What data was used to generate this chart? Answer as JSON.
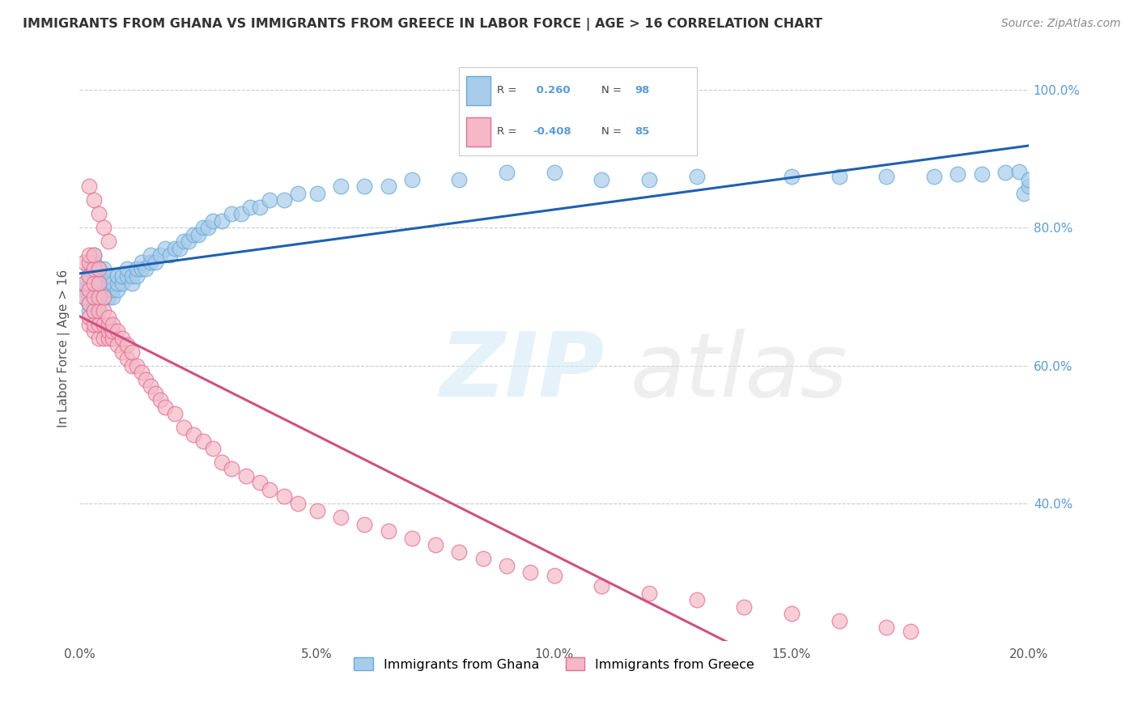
{
  "title": "IMMIGRANTS FROM GHANA VS IMMIGRANTS FROM GREECE IN LABOR FORCE | AGE > 16 CORRELATION CHART",
  "source": "Source: ZipAtlas.com",
  "ylabel": "In Labor Force | Age > 16",
  "x_ticks": [
    0.0,
    0.05,
    0.1,
    0.15,
    0.2
  ],
  "y_ticks_right": [
    0.4,
    0.6,
    0.8,
    1.0
  ],
  "xlim": [
    0.0,
    0.2
  ],
  "ylim": [
    0.2,
    1.05
  ],
  "ghana_color": "#A8CCEA",
  "ghana_edge": "#6AAAD6",
  "greece_color": "#F5B8C8",
  "greece_edge": "#E07090",
  "ghana_line_color": "#2060B0",
  "greece_line_color": "#D05080",
  "ghana_R": 0.26,
  "ghana_N": 98,
  "greece_R": -0.408,
  "greece_N": 85,
  "legend_label_ghana": "Immigrants from Ghana",
  "legend_label_greece": "Immigrants from Greece",
  "background_color": "#ffffff",
  "grid_color": "#cccccc",
  "ghana_x": [
    0.001,
    0.001,
    0.001,
    0.002,
    0.002,
    0.002,
    0.002,
    0.002,
    0.002,
    0.002,
    0.002,
    0.003,
    0.003,
    0.003,
    0.003,
    0.003,
    0.003,
    0.003,
    0.003,
    0.003,
    0.004,
    0.004,
    0.004,
    0.004,
    0.004,
    0.004,
    0.004,
    0.005,
    0.005,
    0.005,
    0.005,
    0.005,
    0.006,
    0.006,
    0.006,
    0.006,
    0.007,
    0.007,
    0.007,
    0.008,
    0.008,
    0.008,
    0.009,
    0.009,
    0.01,
    0.01,
    0.011,
    0.011,
    0.012,
    0.012,
    0.013,
    0.013,
    0.014,
    0.015,
    0.015,
    0.016,
    0.017,
    0.018,
    0.019,
    0.02,
    0.021,
    0.022,
    0.023,
    0.024,
    0.025,
    0.026,
    0.027,
    0.028,
    0.03,
    0.032,
    0.034,
    0.036,
    0.038,
    0.04,
    0.043,
    0.046,
    0.05,
    0.055,
    0.06,
    0.065,
    0.07,
    0.08,
    0.09,
    0.1,
    0.11,
    0.12,
    0.13,
    0.15,
    0.16,
    0.17,
    0.18,
    0.185,
    0.19,
    0.195,
    0.198,
    0.199,
    0.2,
    0.2
  ],
  "ghana_y": [
    0.7,
    0.71,
    0.72,
    0.68,
    0.69,
    0.7,
    0.71,
    0.72,
    0.73,
    0.74,
    0.69,
    0.68,
    0.69,
    0.7,
    0.71,
    0.72,
    0.73,
    0.74,
    0.75,
    0.76,
    0.68,
    0.69,
    0.7,
    0.71,
    0.72,
    0.73,
    0.74,
    0.7,
    0.71,
    0.72,
    0.73,
    0.74,
    0.7,
    0.71,
    0.72,
    0.73,
    0.7,
    0.71,
    0.72,
    0.71,
    0.72,
    0.73,
    0.72,
    0.73,
    0.73,
    0.74,
    0.72,
    0.73,
    0.73,
    0.74,
    0.74,
    0.75,
    0.74,
    0.75,
    0.76,
    0.75,
    0.76,
    0.77,
    0.76,
    0.77,
    0.77,
    0.78,
    0.78,
    0.79,
    0.79,
    0.8,
    0.8,
    0.81,
    0.81,
    0.82,
    0.82,
    0.83,
    0.83,
    0.84,
    0.84,
    0.85,
    0.85,
    0.86,
    0.86,
    0.86,
    0.87,
    0.87,
    0.88,
    0.88,
    0.87,
    0.87,
    0.875,
    0.875,
    0.875,
    0.875,
    0.875,
    0.878,
    0.878,
    0.88,
    0.882,
    0.85,
    0.86,
    0.87
  ],
  "greece_x": [
    0.001,
    0.001,
    0.001,
    0.002,
    0.002,
    0.002,
    0.002,
    0.002,
    0.002,
    0.002,
    0.003,
    0.003,
    0.003,
    0.003,
    0.003,
    0.003,
    0.003,
    0.004,
    0.004,
    0.004,
    0.004,
    0.004,
    0.004,
    0.005,
    0.005,
    0.005,
    0.005,
    0.006,
    0.006,
    0.006,
    0.006,
    0.007,
    0.007,
    0.007,
    0.008,
    0.008,
    0.009,
    0.009,
    0.01,
    0.01,
    0.011,
    0.011,
    0.012,
    0.013,
    0.014,
    0.015,
    0.016,
    0.017,
    0.018,
    0.02,
    0.022,
    0.024,
    0.026,
    0.028,
    0.03,
    0.032,
    0.035,
    0.038,
    0.04,
    0.043,
    0.046,
    0.05,
    0.055,
    0.06,
    0.065,
    0.07,
    0.075,
    0.08,
    0.085,
    0.09,
    0.095,
    0.1,
    0.11,
    0.12,
    0.13,
    0.14,
    0.15,
    0.16,
    0.17,
    0.175,
    0.002,
    0.003,
    0.004,
    0.005,
    0.006
  ],
  "greece_y": [
    0.7,
    0.72,
    0.75,
    0.66,
    0.67,
    0.69,
    0.71,
    0.73,
    0.75,
    0.76,
    0.65,
    0.66,
    0.68,
    0.7,
    0.72,
    0.74,
    0.76,
    0.64,
    0.66,
    0.68,
    0.7,
    0.72,
    0.74,
    0.64,
    0.66,
    0.68,
    0.7,
    0.64,
    0.65,
    0.66,
    0.67,
    0.64,
    0.65,
    0.66,
    0.63,
    0.65,
    0.62,
    0.64,
    0.61,
    0.63,
    0.6,
    0.62,
    0.6,
    0.59,
    0.58,
    0.57,
    0.56,
    0.55,
    0.54,
    0.53,
    0.51,
    0.5,
    0.49,
    0.48,
    0.46,
    0.45,
    0.44,
    0.43,
    0.42,
    0.41,
    0.4,
    0.39,
    0.38,
    0.37,
    0.36,
    0.35,
    0.34,
    0.33,
    0.32,
    0.31,
    0.3,
    0.295,
    0.28,
    0.27,
    0.26,
    0.25,
    0.24,
    0.23,
    0.22,
    0.215,
    0.86,
    0.84,
    0.82,
    0.8,
    0.78
  ]
}
